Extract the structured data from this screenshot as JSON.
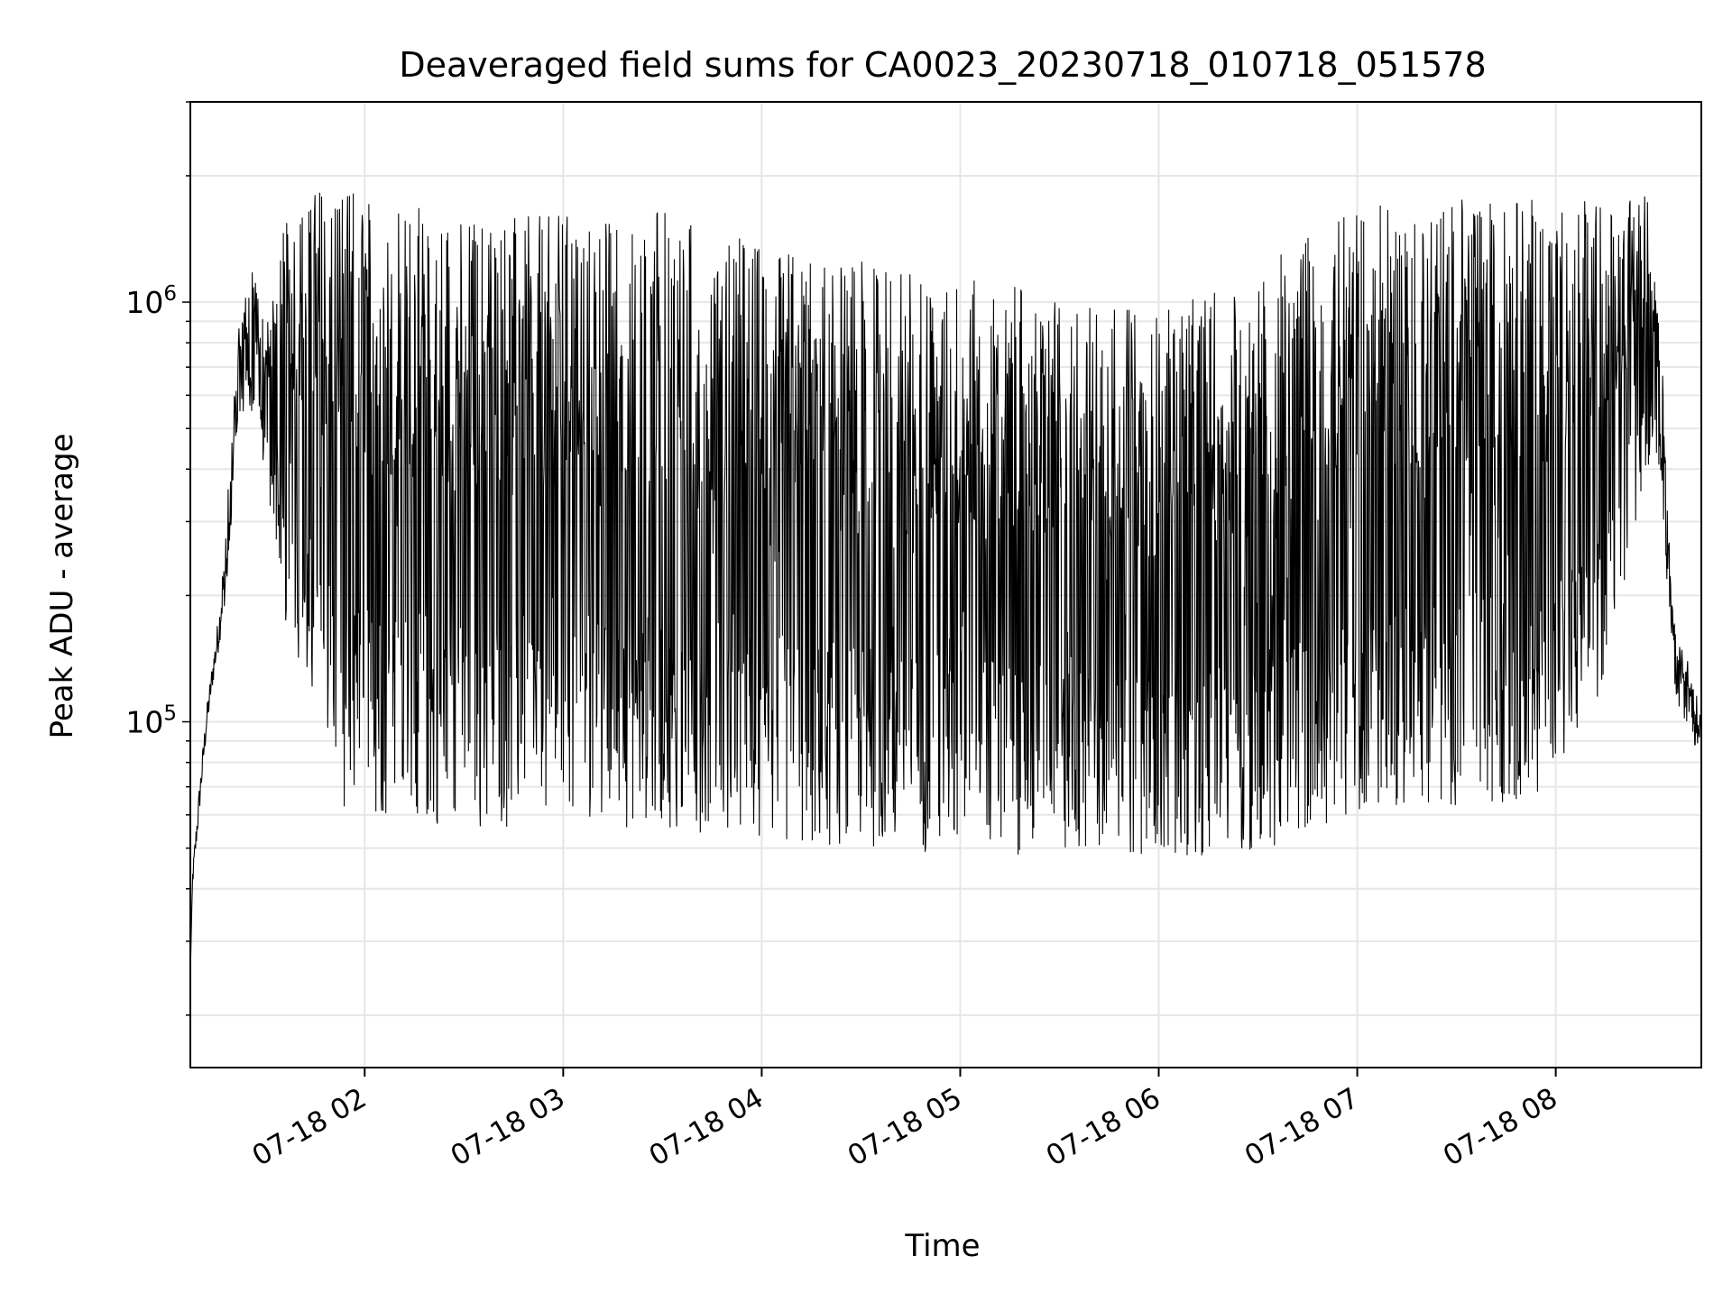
{
  "chart_data": {
    "type": "line",
    "title": "Deaveraged field sums for CA0023_20230718_010718_051578",
    "xlabel": "Time",
    "ylabel": "Peak ADU - average",
    "xlim": [
      "2023-07-18 01:07:18",
      "2023-07-18 08:44:00"
    ],
    "ylim": [
      15000,
      3000000
    ],
    "yscale": "log",
    "grid": true,
    "x_ticks": [
      {
        "value": "2023-07-18 02:00",
        "label": "07-18 02"
      },
      {
        "value": "2023-07-18 03:00",
        "label": "07-18 03"
      },
      {
        "value": "2023-07-18 04:00",
        "label": "07-18 04"
      },
      {
        "value": "2023-07-18 05:00",
        "label": "07-18 05"
      },
      {
        "value": "2023-07-18 06:00",
        "label": "07-18 06"
      },
      {
        "value": "2023-07-18 07:00",
        "label": "07-18 07"
      },
      {
        "value": "2023-07-18 08:00",
        "label": "07-18 08"
      }
    ],
    "y_ticks": [
      {
        "value": 100000,
        "base": "10",
        "exp": "5"
      },
      {
        "value": 1000000,
        "base": "10",
        "exp": "6"
      }
    ],
    "series": [
      {
        "color": "#000000",
        "envelope": {
          "x": [
            "2023-07-18 01:07:18",
            "2023-07-18 01:08",
            "2023-07-18 01:10",
            "2023-07-18 01:12",
            "2023-07-18 01:14",
            "2023-07-18 01:16",
            "2023-07-18 01:18",
            "2023-07-18 01:20",
            "2023-07-18 01:22",
            "2023-07-18 01:24",
            "2023-07-18 01:26",
            "2023-07-18 01:28",
            "2023-07-18 01:30",
            "2023-07-18 01:35",
            "2023-07-18 01:40",
            "2023-07-18 01:45",
            "2023-07-18 01:50",
            "2023-07-18 01:55",
            "2023-07-18 02:00",
            "2023-07-18 02:10",
            "2023-07-18 02:20",
            "2023-07-18 02:30",
            "2023-07-18 02:40",
            "2023-07-18 02:50",
            "2023-07-18 03:00",
            "2023-07-18 03:15",
            "2023-07-18 03:30",
            "2023-07-18 03:45",
            "2023-07-18 04:00",
            "2023-07-18 04:15",
            "2023-07-18 04:30",
            "2023-07-18 04:45",
            "2023-07-18 05:00",
            "2023-07-18 05:15",
            "2023-07-18 05:30",
            "2023-07-18 05:45",
            "2023-07-18 06:00",
            "2023-07-18 06:15",
            "2023-07-18 06:30",
            "2023-07-18 06:45",
            "2023-07-18 07:00",
            "2023-07-18 07:15",
            "2023-07-18 07:30",
            "2023-07-18 07:45",
            "2023-07-18 08:00",
            "2023-07-18 08:10",
            "2023-07-18 08:20",
            "2023-07-18 08:28",
            "2023-07-18 08:30",
            "2023-07-18 08:32",
            "2023-07-18 08:34",
            "2023-07-18 08:36",
            "2023-07-18 08:38",
            "2023-07-18 08:40",
            "2023-07-18 08:42",
            "2023-07-18 08:44"
          ],
          "high": [
            25000,
            45000,
            70000,
            105000,
            140000,
            185000,
            300000,
            550000,
            950000,
            1100000,
            1300000,
            1000000,
            900000,
            1500000,
            1700000,
            1900000,
            2000000,
            1900000,
            1800000,
            1750000,
            1650000,
            1600000,
            1650000,
            1600000,
            1650000,
            1600000,
            1700000,
            1500000,
            1400000,
            1300000,
            1250000,
            1200000,
            1150000,
            1100000,
            1000000,
            1000000,
            950000,
            1050000,
            1150000,
            1500000,
            1700000,
            1800000,
            1800000,
            1750000,
            1800000,
            1800000,
            1700000,
            1900000,
            1300000,
            800000,
            300000,
            180000,
            150000,
            140000,
            120000,
            110000
          ],
          "low": [
            25000,
            40000,
            60000,
            90000,
            120000,
            150000,
            200000,
            320000,
            500000,
            550000,
            500000,
            450000,
            400000,
            180000,
            140000,
            100000,
            70000,
            60000,
            60000,
            58000,
            57000,
            55000,
            55000,
            56000,
            55000,
            55000,
            56000,
            54000,
            52000,
            50000,
            50000,
            49000,
            48000,
            48000,
            49000,
            48000,
            47000,
            48000,
            48000,
            55000,
            60000,
            62000,
            63000,
            64000,
            70000,
            90000,
            200000,
            400000,
            450000,
            300000,
            200000,
            120000,
            100000,
            95000,
            88000,
            85000
          ]
        }
      }
    ]
  }
}
